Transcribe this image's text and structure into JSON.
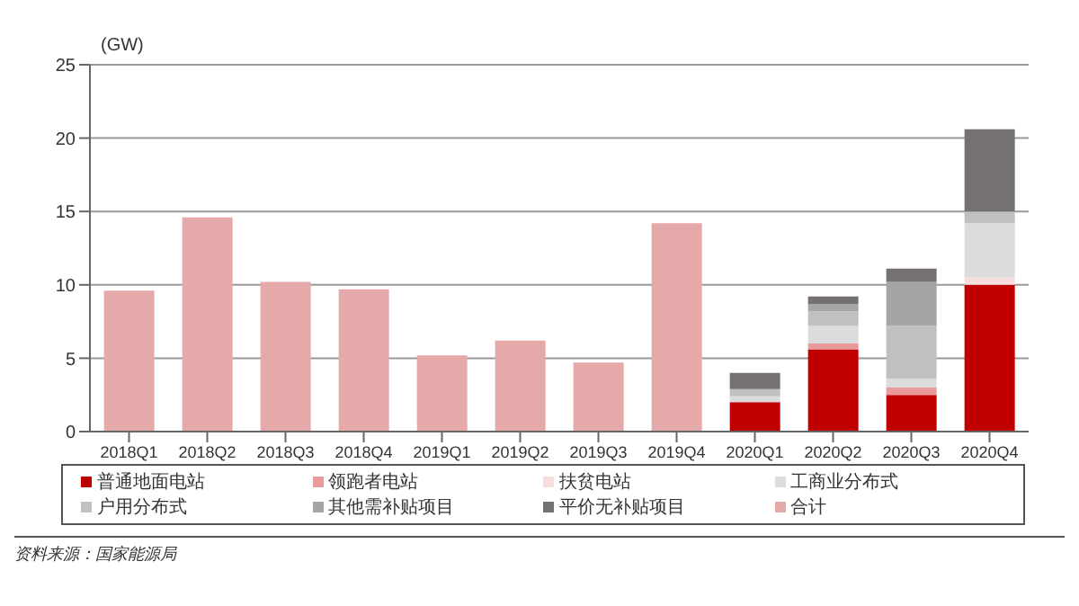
{
  "chart_data": {
    "type": "bar",
    "stacked": true,
    "ylabel": "(GW)",
    "categories": [
      "2018Q1",
      "2018Q2",
      "2018Q3",
      "2018Q4",
      "2019Q1",
      "2019Q2",
      "2019Q3",
      "2019Q4",
      "2020Q1",
      "2020Q2",
      "2020Q3",
      "2020Q4"
    ],
    "series": [
      {
        "name": "普通地面电站",
        "color": "#c00000",
        "values": [
          null,
          null,
          null,
          null,
          null,
          null,
          null,
          null,
          2.0,
          5.6,
          2.5,
          10.0
        ]
      },
      {
        "name": "领跑者电站",
        "color": "#e99a9a",
        "values": [
          null,
          null,
          null,
          null,
          null,
          null,
          null,
          null,
          null,
          0.4,
          0.5,
          null
        ]
      },
      {
        "name": "扶贫电站",
        "color": "#f6dede",
        "values": [
          null,
          null,
          null,
          null,
          null,
          null,
          null,
          null,
          null,
          null,
          null,
          0.5
        ]
      },
      {
        "name": "工商业分布式",
        "color": "#dcdcdc",
        "values": [
          null,
          null,
          null,
          null,
          null,
          null,
          null,
          null,
          0.4,
          1.2,
          0.6,
          3.7
        ]
      },
      {
        "name": "户用分布式",
        "color": "#c0c0c0",
        "values": [
          null,
          null,
          null,
          null,
          null,
          null,
          null,
          null,
          0.5,
          1.0,
          3.6,
          0.8
        ]
      },
      {
        "name": "其他需补贴项目",
        "color": "#a5a5a5",
        "values": [
          null,
          null,
          null,
          null,
          null,
          null,
          null,
          null,
          null,
          0.5,
          3.0,
          null
        ]
      },
      {
        "name": "平价无补贴项目",
        "color": "#767171",
        "values": [
          null,
          null,
          null,
          null,
          null,
          null,
          null,
          null,
          1.1,
          0.5,
          0.9,
          5.6
        ]
      },
      {
        "name": "合计",
        "color": "#e6a9a9",
        "values": [
          9.6,
          14.6,
          10.2,
          9.7,
          5.2,
          6.2,
          4.7,
          14.2,
          null,
          null,
          null,
          null
        ]
      }
    ],
    "ylim": [
      0,
      25
    ],
    "yticks": [
      0,
      5,
      10,
      15,
      20,
      25
    ],
    "grid": "y",
    "legend": "bottom",
    "annotations": [
      "资料来源：国家能源局"
    ]
  }
}
